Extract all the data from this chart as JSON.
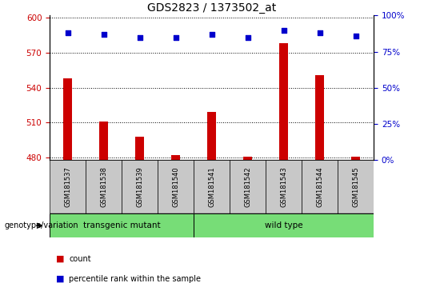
{
  "title": "GDS2823 / 1373502_at",
  "samples": [
    "GSM181537",
    "GSM181538",
    "GSM181539",
    "GSM181540",
    "GSM181541",
    "GSM181542",
    "GSM181543",
    "GSM181544",
    "GSM181545"
  ],
  "counts": [
    548,
    511,
    498,
    482,
    519,
    481,
    578,
    551,
    481
  ],
  "percentiles": [
    88,
    87,
    85,
    85,
    87,
    85,
    90,
    88,
    86
  ],
  "ylim_left": [
    478,
    602
  ],
  "yticks_left": [
    480,
    510,
    540,
    570,
    600
  ],
  "ylim_right": [
    0,
    100
  ],
  "yticks_right": [
    0,
    25,
    50,
    75,
    100
  ],
  "bar_color": "#cc0000",
  "dot_color": "#0000cc",
  "group1_label": "transgenic mutant",
  "group1_indices": [
    0,
    1,
    2,
    3
  ],
  "group2_label": "wild type",
  "group2_indices": [
    4,
    5,
    6,
    7,
    8
  ],
  "group_bg_color": "#77dd77",
  "tick_bg_color": "#c8c8c8",
  "genotype_label": "genotype/variation",
  "legend_count_label": "count",
  "legend_percentile_label": "percentile rank within the sample",
  "title_fontsize": 10,
  "tick_fontsize": 7.5,
  "bar_width": 0.25
}
